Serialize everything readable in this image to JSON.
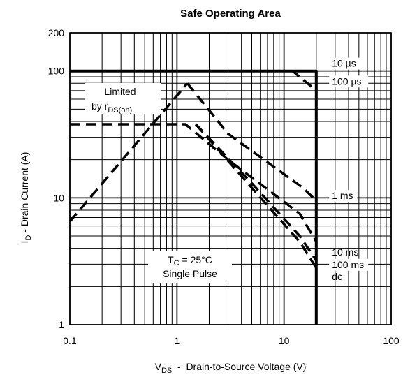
{
  "chart_data": {
    "type": "line",
    "title": "Safe Operating Area",
    "x_label": {
      "main": "V",
      "sub": "DS",
      "rest": "  -  Drain-to-Source Voltage (V)"
    },
    "y_label": {
      "main": "I",
      "sub": "D",
      "rest": " - Drain Current (A)"
    },
    "x_scale": "log",
    "y_scale": "log",
    "xlim": [
      0.1,
      100
    ],
    "ylim": [
      1,
      200
    ],
    "x_ticks": [
      {
        "value": 0.1,
        "label": "0.1"
      },
      {
        "value": 1,
        "label": "1"
      },
      {
        "value": 10,
        "label": "10"
      },
      {
        "value": 100,
        "label": "100"
      }
    ],
    "y_ticks": [
      {
        "value": 1,
        "label": "1"
      },
      {
        "value": 10,
        "label": "10"
      },
      {
        "value": 100,
        "label": "100"
      },
      {
        "value": 200,
        "label": "200"
      }
    ],
    "grid": true,
    "annotations": {
      "limited_line1": "Limited",
      "limited_line2_main": "by r",
      "limited_line2_sub": "DS(on)",
      "conditions_line1_main": "T",
      "conditions_line1_sub": "C",
      "conditions_line1_rest": " = 25°C",
      "conditions_line2": "Single Pulse"
    },
    "series": [
      {
        "name": "10 µs",
        "style": "solid",
        "points": [
          [
            0.1,
            100
          ],
          [
            20,
            100
          ],
          [
            20,
            1
          ]
        ]
      },
      {
        "name": "100 µs",
        "style": "dashed",
        "points": [
          [
            1.45,
            100
          ],
          [
            12,
            100
          ],
          [
            20,
            70
          ]
        ]
      },
      {
        "name": "Limited by rDS(on)",
        "style": "dashed",
        "points": [
          [
            0.1,
            6.5
          ],
          [
            1.25,
            80
          ]
        ]
      },
      {
        "name": "1 ms",
        "style": "dashed",
        "points": [
          [
            1.25,
            80
          ],
          [
            3,
            32
          ],
          [
            15,
            12
          ],
          [
            20,
            9.5
          ]
        ]
      },
      {
        "name": "10 ms",
        "style": "dashed",
        "points": [
          [
            0.1,
            38
          ],
          [
            1.2,
            38
          ],
          [
            3,
            20
          ],
          [
            14,
            7.5
          ],
          [
            20,
            4.5
          ]
        ]
      },
      {
        "name": "100 ms",
        "style": "dashed",
        "points": [
          [
            1.5,
            38
          ],
          [
            5,
            13
          ],
          [
            14,
            5
          ],
          [
            20,
            3.2
          ]
        ]
      },
      {
        "name": "dc",
        "style": "dashed",
        "points": [
          [
            1.5,
            38
          ],
          [
            5,
            12
          ],
          [
            14,
            4.5
          ],
          [
            20,
            2.8
          ]
        ]
      }
    ],
    "series_labels": [
      {
        "text": "10 µs",
        "x": 28,
        "y": 108,
        "boxed": true
      },
      {
        "text": "100 µs",
        "x": 28,
        "y": 78,
        "boxed": true
      },
      {
        "text": "1 ms",
        "x": 28,
        "y": 9.8,
        "boxed": true
      },
      {
        "text": "10 ms",
        "x": 28,
        "y": 3.5,
        "boxed": false
      },
      {
        "text": "100 ms",
        "x": 28,
        "y": 2.8,
        "boxed": true
      },
      {
        "text": "dc",
        "x": 28,
        "y": 2.25,
        "boxed": false
      }
    ]
  }
}
